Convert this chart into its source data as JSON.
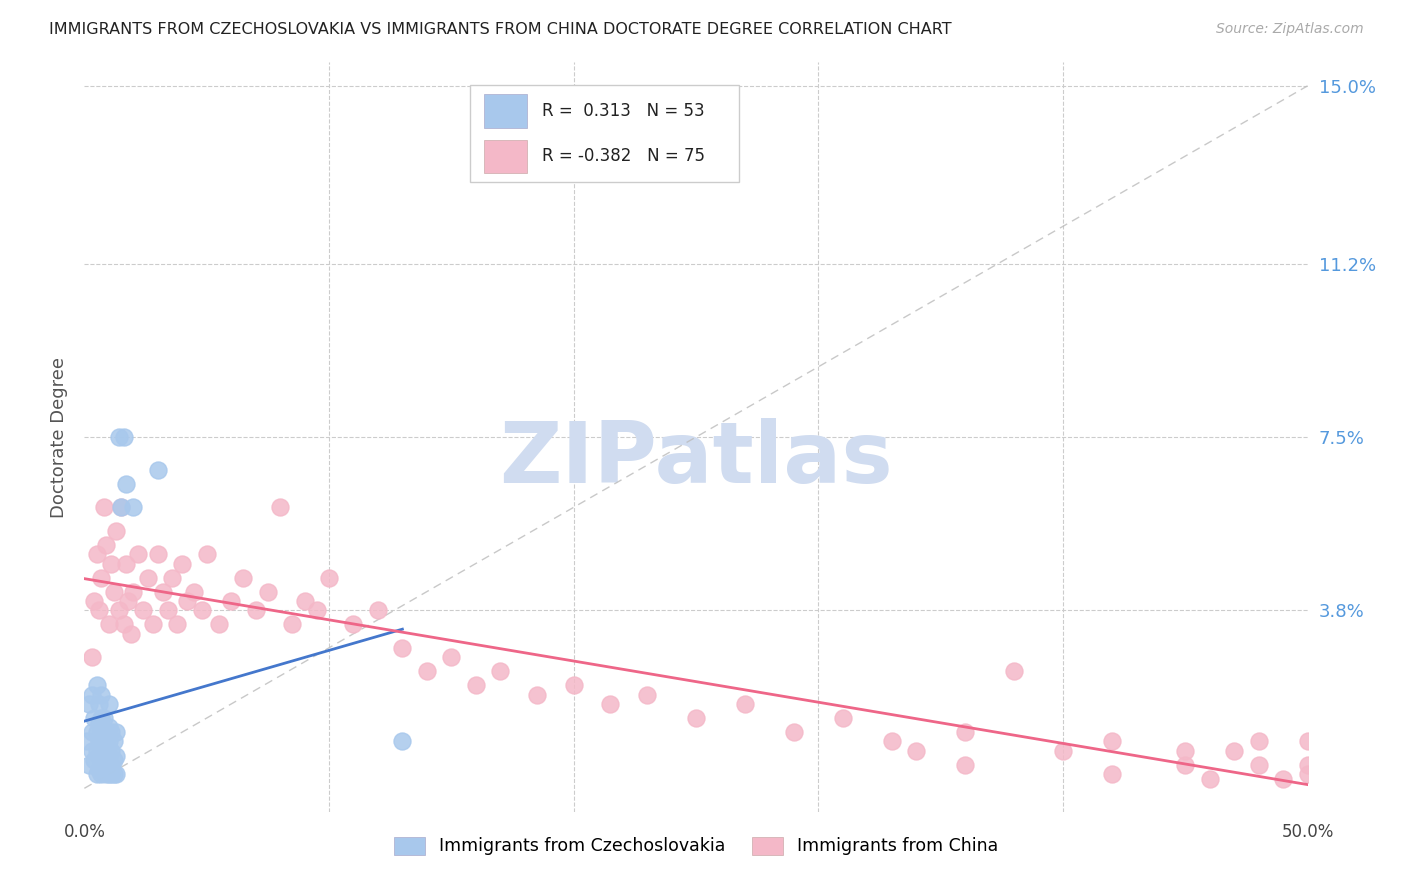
{
  "title": "IMMIGRANTS FROM CZECHOSLOVAKIA VS IMMIGRANTS FROM CHINA DOCTORATE DEGREE CORRELATION CHART",
  "source": "Source: ZipAtlas.com",
  "ylabel_label": "Doctorate Degree",
  "xlim": [
    0.0,
    0.5
  ],
  "ylim": [
    -0.005,
    0.155
  ],
  "ytick_positions": [
    0.038,
    0.075,
    0.112,
    0.15
  ],
  "ytick_labels": [
    "3.8%",
    "7.5%",
    "11.2%",
    "15.0%"
  ],
  "legend_R_blue": "0.313",
  "legend_N_blue": "53",
  "legend_R_pink": "-0.382",
  "legend_N_pink": "75",
  "legend_label_blue": "Immigrants from Czechoslovakia",
  "legend_label_pink": "Immigrants from China",
  "blue_color": "#A8C8EC",
  "pink_color": "#F4B8C8",
  "blue_line_color": "#4477CC",
  "pink_line_color": "#EE6688",
  "watermark_color": "#D0DCF0",
  "blue_scatter_x": [
    0.001,
    0.002,
    0.002,
    0.003,
    0.003,
    0.003,
    0.004,
    0.004,
    0.005,
    0.005,
    0.005,
    0.005,
    0.006,
    0.006,
    0.006,
    0.006,
    0.006,
    0.007,
    0.007,
    0.007,
    0.007,
    0.007,
    0.007,
    0.008,
    0.008,
    0.008,
    0.008,
    0.009,
    0.009,
    0.009,
    0.01,
    0.01,
    0.01,
    0.01,
    0.01,
    0.01,
    0.011,
    0.011,
    0.011,
    0.011,
    0.012,
    0.012,
    0.012,
    0.013,
    0.013,
    0.013,
    0.014,
    0.015,
    0.016,
    0.017,
    0.02,
    0.03,
    0.13
  ],
  "blue_scatter_y": [
    0.01,
    0.005,
    0.018,
    0.008,
    0.012,
    0.02,
    0.006,
    0.015,
    0.003,
    0.008,
    0.012,
    0.022,
    0.004,
    0.007,
    0.01,
    0.014,
    0.018,
    0.003,
    0.006,
    0.009,
    0.012,
    0.015,
    0.02,
    0.004,
    0.007,
    0.01,
    0.015,
    0.003,
    0.006,
    0.01,
    0.003,
    0.005,
    0.007,
    0.01,
    0.013,
    0.018,
    0.003,
    0.005,
    0.008,
    0.012,
    0.003,
    0.006,
    0.01,
    0.003,
    0.007,
    0.012,
    0.075,
    0.06,
    0.075,
    0.065,
    0.06,
    0.068,
    0.01
  ],
  "pink_scatter_x": [
    0.003,
    0.004,
    0.005,
    0.006,
    0.007,
    0.008,
    0.009,
    0.01,
    0.011,
    0.012,
    0.013,
    0.014,
    0.015,
    0.016,
    0.017,
    0.018,
    0.019,
    0.02,
    0.022,
    0.024,
    0.026,
    0.028,
    0.03,
    0.032,
    0.034,
    0.036,
    0.038,
    0.04,
    0.042,
    0.045,
    0.048,
    0.05,
    0.055,
    0.06,
    0.065,
    0.07,
    0.075,
    0.08,
    0.085,
    0.09,
    0.095,
    0.1,
    0.11,
    0.12,
    0.13,
    0.14,
    0.15,
    0.16,
    0.17,
    0.185,
    0.2,
    0.215,
    0.23,
    0.25,
    0.27,
    0.29,
    0.31,
    0.33,
    0.36,
    0.38,
    0.4,
    0.42,
    0.45,
    0.47,
    0.48,
    0.49,
    0.5,
    0.34,
    0.36,
    0.42,
    0.45,
    0.46,
    0.48,
    0.5,
    0.5
  ],
  "pink_scatter_y": [
    0.028,
    0.04,
    0.05,
    0.038,
    0.045,
    0.06,
    0.052,
    0.035,
    0.048,
    0.042,
    0.055,
    0.038,
    0.06,
    0.035,
    0.048,
    0.04,
    0.033,
    0.042,
    0.05,
    0.038,
    0.045,
    0.035,
    0.05,
    0.042,
    0.038,
    0.045,
    0.035,
    0.048,
    0.04,
    0.042,
    0.038,
    0.05,
    0.035,
    0.04,
    0.045,
    0.038,
    0.042,
    0.06,
    0.035,
    0.04,
    0.038,
    0.045,
    0.035,
    0.038,
    0.03,
    0.025,
    0.028,
    0.022,
    0.025,
    0.02,
    0.022,
    0.018,
    0.02,
    0.015,
    0.018,
    0.012,
    0.015,
    0.01,
    0.012,
    0.025,
    0.008,
    0.01,
    0.005,
    0.008,
    0.01,
    0.002,
    0.005,
    0.008,
    0.005,
    0.003,
    0.008,
    0.002,
    0.005,
    0.01,
    0.003
  ]
}
